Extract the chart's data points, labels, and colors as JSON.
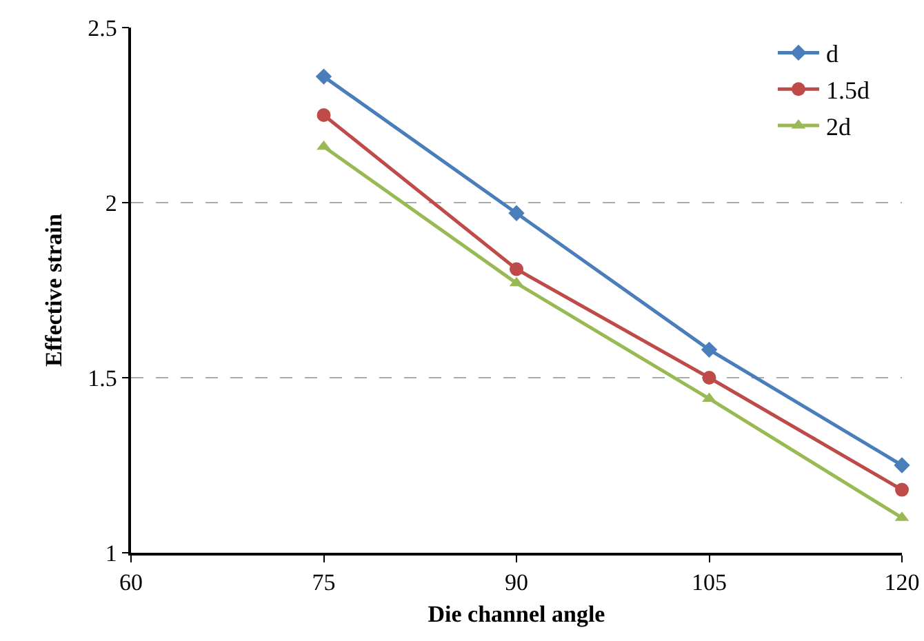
{
  "chart_data": {
    "type": "line",
    "xlabel": "Die channel angle",
    "ylabel": "Effective strain",
    "x": [
      75,
      90,
      105,
      120
    ],
    "series": [
      {
        "name": "d",
        "color": "#4a7ebb",
        "marker": "diamond",
        "values": [
          2.36,
          1.97,
          1.58,
          1.25
        ]
      },
      {
        "name": "1.5d",
        "color": "#be4b48",
        "marker": "circle",
        "values": [
          2.25,
          1.81,
          1.5,
          1.18
        ]
      },
      {
        "name": "2d",
        "color": "#98b954",
        "marker": "triangle",
        "values": [
          2.16,
          1.77,
          1.44,
          1.1
        ]
      }
    ],
    "xlim": [
      60,
      120
    ],
    "xticks": [
      60,
      75,
      90,
      105,
      120
    ],
    "ylim": [
      1,
      2.5
    ],
    "yticks": [
      1,
      1.5,
      2,
      2.5
    ],
    "grid": "y",
    "legend": "top right",
    "line_style": "solid"
  }
}
